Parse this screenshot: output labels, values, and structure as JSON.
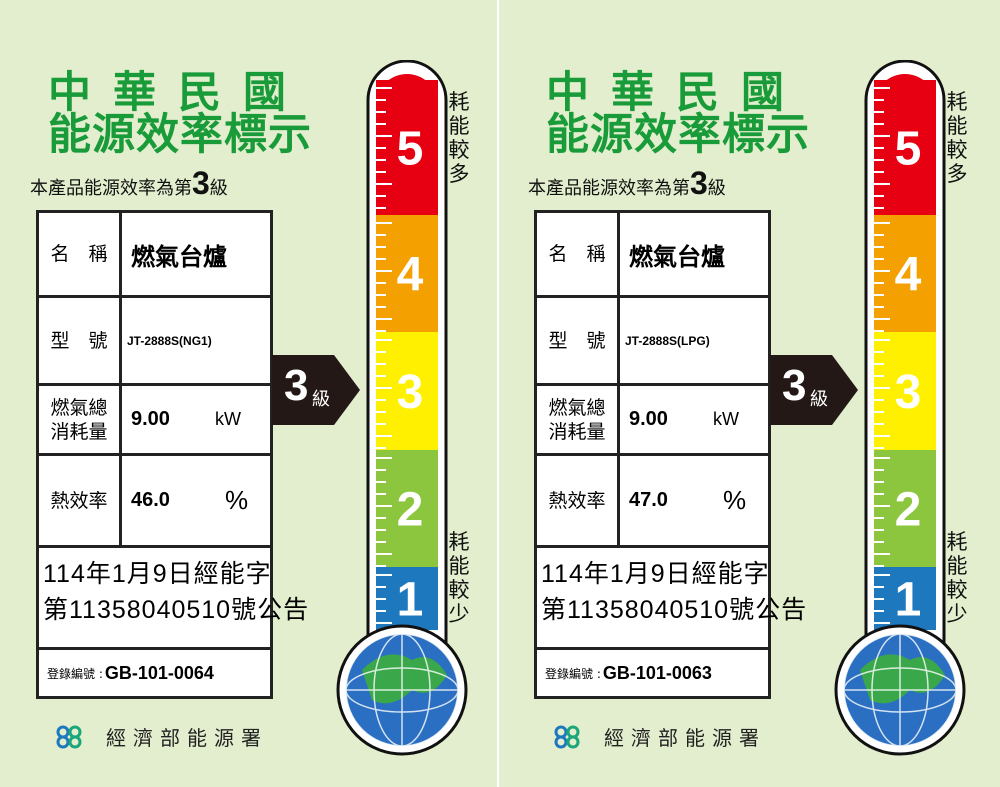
{
  "colors": {
    "title_green": "#1a9b3a",
    "grade5": "#e60012",
    "grade4": "#f4a000",
    "grade3": "#fff000",
    "grade2": "#8cc63f",
    "grade1": "#1e78be",
    "background": "#e2eecd"
  },
  "labels": [
    {
      "title_line1": "中華民國",
      "title_line2": "能源效率標示",
      "subtitle_prefix": "本產品能源效率為第",
      "grade": "3",
      "subtitle_suffix": "級",
      "name_label": "名　稱",
      "name_value": "燃氣台爐",
      "model_label": "型　號",
      "model_value": "JT-2888S(NG1)",
      "gas_label": "燃氣總消耗量",
      "gas_value": "9.00",
      "gas_unit": "kW",
      "eff_label": "熱效率",
      "eff_value": "46.0",
      "eff_unit": "%",
      "announce_line1": "114年1月9日經能字",
      "announce_line2": "第11358040510號公告",
      "reg_label": "登錄編號 :",
      "reg_value": "GB-101-0064",
      "arrow_grade": "3",
      "arrow_unit": "級",
      "more": "耗能較多",
      "less": "耗能較少",
      "agency": "經濟部能源署",
      "scale": [
        "5",
        "4",
        "3",
        "2",
        "1"
      ]
    },
    {
      "title_line1": "中華民國",
      "title_line2": "能源效率標示",
      "subtitle_prefix": "本產品能源效率為第",
      "grade": "3",
      "subtitle_suffix": "級",
      "name_label": "名　稱",
      "name_value": "燃氣台爐",
      "model_label": "型　號",
      "model_value": "JT-2888S(LPG)",
      "gas_label": "燃氣總消耗量",
      "gas_value": "9.00",
      "gas_unit": "kW",
      "eff_label": "熱效率",
      "eff_value": "47.0",
      "eff_unit": "%",
      "announce_line1": "114年1月9日經能字",
      "announce_line2": "第11358040510號公告",
      "reg_label": "登錄編號 :",
      "reg_value": "GB-101-0063",
      "arrow_grade": "3",
      "arrow_unit": "級",
      "more": "耗能較多",
      "less": "耗能較少",
      "agency": "經濟部能源署",
      "scale": [
        "5",
        "4",
        "3",
        "2",
        "1"
      ]
    }
  ]
}
